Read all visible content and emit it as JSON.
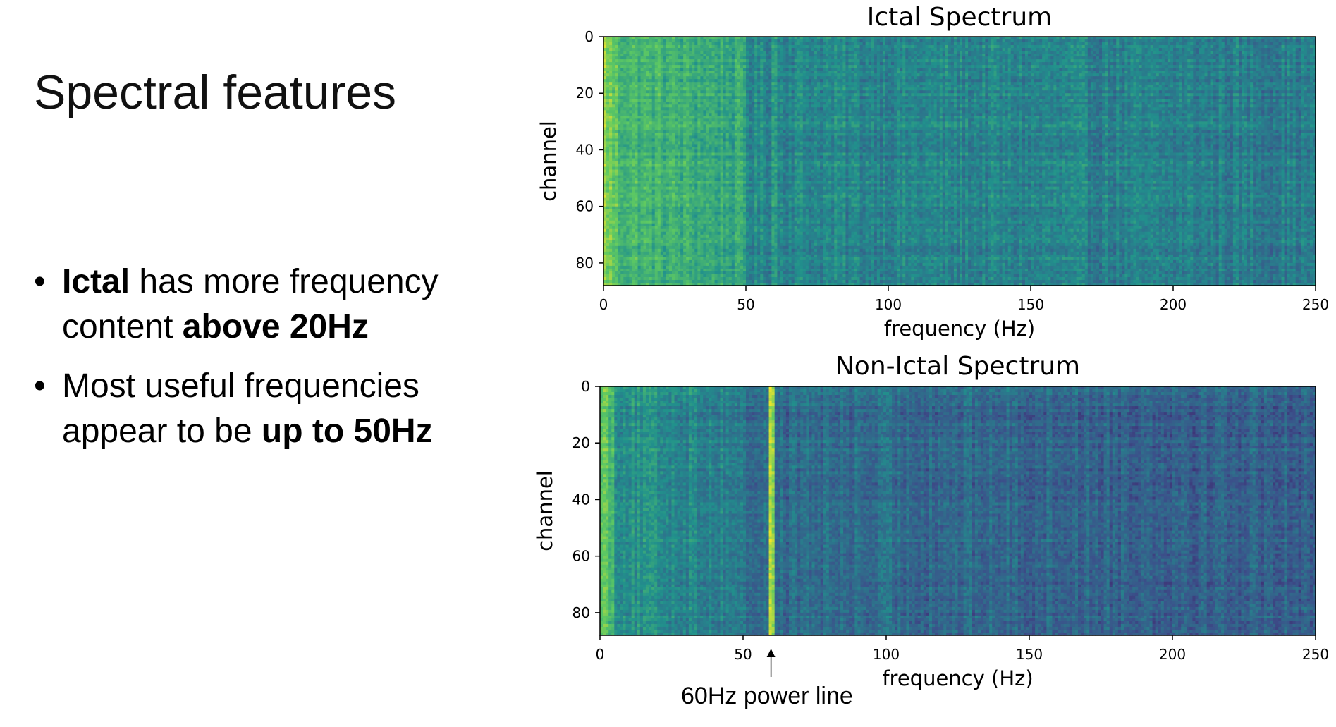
{
  "slide": {
    "title": "Spectral features",
    "bullets": [
      {
        "parts": [
          {
            "text": "Ictal",
            "bold": true
          },
          {
            "text": " has more frequency content ",
            "bold": false
          },
          {
            "text": "above 20Hz",
            "bold": true
          }
        ]
      },
      {
        "parts": [
          {
            "text": "Most useful frequencies appear to be ",
            "bold": false
          },
          {
            "text": "up to 50Hz",
            "bold": true
          }
        ]
      }
    ],
    "annotation": "60Hz power line",
    "bullet_glyph": "•"
  },
  "colors": {
    "viridis_low": "#440154",
    "viridis_mid": "#21918c",
    "viridis_high": "#fde725"
  },
  "chart_data": [
    {
      "type": "heatmap",
      "title": "Ictal Spectrum",
      "xlabel": "frequency (Hz)",
      "ylabel": "channel",
      "xlim": [
        0,
        250
      ],
      "ylim": [
        88,
        0
      ],
      "xticks": [
        0,
        50,
        100,
        150,
        200,
        250
      ],
      "yticks": [
        0,
        20,
        40,
        60,
        80
      ],
      "colormap": "viridis",
      "rows": 88,
      "cols": 250,
      "description_values": {
        "low_freq_band_hz": [
          0,
          5
        ],
        "low_freq_intensity": 0.85,
        "band_5_50_intensity": 0.58,
        "band_50_250_intensity": 0.47,
        "power_line_hz": 60,
        "power_line_intensity": 0.55
      }
    },
    {
      "type": "heatmap",
      "title": "Non-Ictal Spectrum",
      "xlabel": "frequency (Hz)",
      "ylabel": "channel",
      "xlim": [
        0,
        250
      ],
      "ylim": [
        88,
        0
      ],
      "xticks": [
        0,
        50,
        100,
        150,
        200,
        250
      ],
      "yticks": [
        0,
        20,
        40,
        60,
        80
      ],
      "colormap": "viridis",
      "rows": 88,
      "cols": 250,
      "description_values": {
        "low_freq_band_hz": [
          0,
          5
        ],
        "low_freq_intensity": 0.8,
        "band_5_50_intensity": 0.42,
        "band_50_250_intensity": 0.36,
        "power_line_hz": 60,
        "power_line_intensity": 0.85
      }
    }
  ]
}
